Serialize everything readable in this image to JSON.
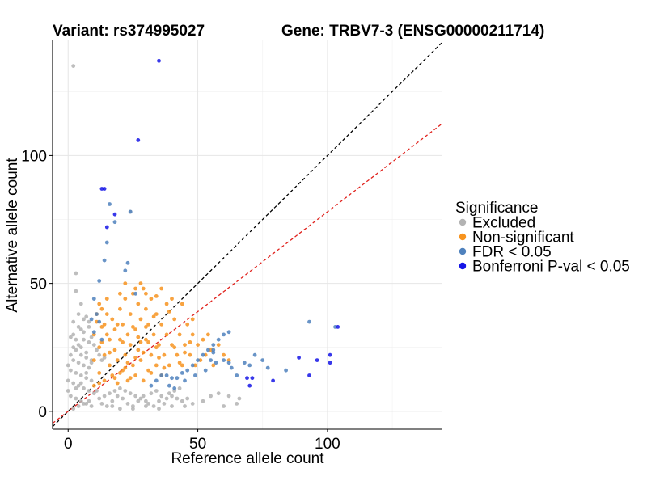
{
  "chart_data": {
    "type": "scatter",
    "title_variant": "Variant: rs374995027",
    "title_gene": "Gene: TRBV7-3 (ENSG00000211714)",
    "xlabel": "Reference allele count",
    "ylabel": "Alternative allele count",
    "xlim": [
      -6,
      144
    ],
    "ylim": [
      -7,
      145
    ],
    "xticks": [
      0,
      50,
      100
    ],
    "yticks": [
      0,
      50,
      100
    ],
    "minor_xticks": [
      25,
      75,
      125
    ],
    "minor_yticks": [
      25,
      75,
      125
    ],
    "reference_lines": [
      {
        "name": "identity",
        "slope": 1,
        "intercept": 0,
        "color": "#000000",
        "style": "dashed"
      },
      {
        "name": "expected-ratio",
        "slope": 0.78,
        "intercept": 0,
        "color": "#e0211c",
        "style": "dashed"
      }
    ],
    "legend": {
      "title": "Significance",
      "position": "right",
      "entries": [
        {
          "label": "Excluded",
          "color": "#b3b3b3"
        },
        {
          "label": "Non-significant",
          "color": "#f7931e"
        },
        {
          "label": "FDR < 0.05",
          "color": "#4f81bd"
        },
        {
          "label": "Bonferroni P-val < 0.05",
          "color": "#1515e6"
        }
      ]
    },
    "series": [
      {
        "name": "Excluded",
        "color": "#b3b3b3",
        "points": [
          [
            2,
            135
          ],
          [
            3,
            54
          ],
          [
            3,
            47
          ],
          [
            5,
            42
          ],
          [
            4,
            38
          ],
          [
            2,
            30
          ],
          [
            6,
            28
          ],
          [
            8,
            27
          ],
          [
            3,
            24
          ],
          [
            5,
            22
          ],
          [
            7,
            21
          ],
          [
            2,
            20
          ],
          [
            4,
            19
          ],
          [
            6,
            18
          ],
          [
            8,
            17
          ],
          [
            1,
            16
          ],
          [
            3,
            15
          ],
          [
            5,
            14
          ],
          [
            7,
            13
          ],
          [
            9,
            12
          ],
          [
            2,
            11
          ],
          [
            4,
            10
          ],
          [
            6,
            9
          ],
          [
            8,
            8
          ],
          [
            10,
            7
          ],
          [
            1,
            6
          ],
          [
            3,
            5
          ],
          [
            5,
            4
          ],
          [
            7,
            3
          ],
          [
            9,
            2
          ],
          [
            2,
            1
          ],
          [
            4,
            2
          ],
          [
            6,
            3
          ],
          [
            8,
            4
          ],
          [
            12,
            5
          ],
          [
            14,
            6
          ],
          [
            16,
            7
          ],
          [
            18,
            8
          ],
          [
            20,
            9
          ],
          [
            22,
            8
          ],
          [
            24,
            7
          ],
          [
            26,
            6
          ],
          [
            28,
            5
          ],
          [
            30,
            4
          ],
          [
            32,
            7
          ],
          [
            34,
            8
          ],
          [
            36,
            6
          ],
          [
            38,
            5
          ],
          [
            40,
            6
          ],
          [
            42,
            5
          ],
          [
            44,
            4
          ],
          [
            46,
            5
          ],
          [
            55,
            6
          ],
          [
            58,
            7
          ],
          [
            62,
            6
          ],
          [
            66,
            5
          ],
          [
            3,
            9
          ],
          [
            5,
            11
          ],
          [
            7,
            15
          ],
          [
            9,
            19
          ],
          [
            11,
            8
          ],
          [
            13,
            3
          ],
          [
            15,
            2
          ],
          [
            17,
            4
          ],
          [
            19,
            6
          ],
          [
            21,
            5
          ],
          [
            23,
            3
          ],
          [
            25,
            2
          ],
          [
            27,
            4
          ],
          [
            29,
            6
          ],
          [
            31,
            3
          ],
          [
            33,
            2
          ],
          [
            35,
            4
          ],
          [
            37,
            3
          ],
          [
            39,
            7
          ],
          [
            41,
            8
          ],
          [
            43,
            9
          ],
          [
            5,
            25
          ],
          [
            7,
            23
          ],
          [
            4,
            26
          ],
          [
            6,
            31
          ],
          [
            8,
            33
          ],
          [
            2,
            35
          ],
          [
            4,
            33
          ],
          [
            1,
            29
          ],
          [
            0,
            8
          ],
          [
            0,
            12
          ],
          [
            0,
            18
          ],
          [
            1,
            22
          ],
          [
            2,
            25
          ],
          [
            3,
            28
          ],
          [
            5,
            32
          ],
          [
            6,
            36
          ],
          [
            7,
            37
          ],
          [
            8,
            35
          ],
          [
            9,
            29
          ],
          [
            10,
            26
          ],
          [
            11,
            24
          ],
          [
            12,
            22
          ],
          [
            13,
            20
          ],
          [
            14,
            21
          ],
          [
            17,
            2
          ],
          [
            20,
            1
          ],
          [
            25,
            1
          ],
          [
            30,
            2
          ],
          [
            35,
            1
          ],
          [
            40,
            2
          ],
          [
            45,
            2
          ],
          [
            48,
            3
          ],
          [
            52,
            4
          ],
          [
            60,
            2
          ],
          [
            65,
            3
          ],
          [
            24,
            78
          ],
          [
            9,
            20
          ]
        ]
      },
      {
        "name": "Non-significant",
        "color": "#f7931e",
        "points": [
          [
            10,
            10
          ],
          [
            10,
            20
          ],
          [
            10,
            30
          ],
          [
            11,
            35
          ],
          [
            12,
            15
          ],
          [
            12,
            25
          ],
          [
            13,
            33
          ],
          [
            14,
            12
          ],
          [
            14,
            22
          ],
          [
            15,
            30
          ],
          [
            15,
            38
          ],
          [
            16,
            18
          ],
          [
            16,
            28
          ],
          [
            17,
            14
          ],
          [
            17,
            36
          ],
          [
            18,
            24
          ],
          [
            18,
            32
          ],
          [
            19,
            11
          ],
          [
            19,
            20
          ],
          [
            20,
            28
          ],
          [
            20,
            40
          ],
          [
            21,
            16
          ],
          [
            21,
            34
          ],
          [
            22,
            22
          ],
          [
            22,
            44
          ],
          [
            23,
            12
          ],
          [
            23,
            30
          ],
          [
            24,
            26
          ],
          [
            24,
            38
          ],
          [
            25,
            18
          ],
          [
            25,
            46
          ],
          [
            26,
            14
          ],
          [
            26,
            32
          ],
          [
            27,
            24
          ],
          [
            27,
            42
          ],
          [
            28,
            20
          ],
          [
            28,
            36
          ],
          [
            29,
            12
          ],
          [
            29,
            48
          ],
          [
            30,
            28
          ],
          [
            30,
            40
          ],
          [
            31,
            16
          ],
          [
            31,
            34
          ],
          [
            32,
            22
          ],
          [
            32,
            44
          ],
          [
            33,
            30
          ],
          [
            34,
            18
          ],
          [
            34,
            38
          ],
          [
            35,
            26
          ],
          [
            36,
            14
          ],
          [
            36,
            34
          ],
          [
            37,
            22
          ],
          [
            38,
            30
          ],
          [
            39,
            18
          ],
          [
            40,
            26
          ],
          [
            41,
            36
          ],
          [
            42,
            22
          ],
          [
            43,
            30
          ],
          [
            44,
            18
          ],
          [
            45,
            26
          ],
          [
            46,
            34
          ],
          [
            47,
            22
          ],
          [
            48,
            30
          ],
          [
            49,
            18
          ],
          [
            50,
            26
          ],
          [
            51,
            20
          ],
          [
            52,
            28
          ],
          [
            53,
            22
          ],
          [
            54,
            30
          ],
          [
            55,
            24
          ],
          [
            56,
            18
          ],
          [
            58,
            26
          ],
          [
            60,
            22
          ],
          [
            62,
            20
          ],
          [
            48,
            36
          ],
          [
            44,
            42
          ],
          [
            40,
            44
          ],
          [
            36,
            48
          ],
          [
            28,
            50
          ],
          [
            26,
            48
          ],
          [
            30,
            46
          ],
          [
            34,
            45
          ],
          [
            38,
            42
          ],
          [
            15,
            44
          ],
          [
            13,
            40
          ],
          [
            11,
            38
          ],
          [
            12,
            42
          ],
          [
            20,
            46
          ],
          [
            22,
            50
          ],
          [
            19,
            34
          ],
          [
            21,
            27
          ],
          [
            23,
            19
          ],
          [
            25,
            33
          ],
          [
            27,
            29
          ],
          [
            29,
            23
          ],
          [
            31,
            27
          ],
          [
            33,
            37
          ],
          [
            35,
            21
          ],
          [
            37,
            17
          ],
          [
            39,
            39
          ],
          [
            41,
            25
          ],
          [
            43,
            19
          ],
          [
            45,
            23
          ],
          [
            47,
            27
          ],
          [
            12,
            11
          ],
          [
            13,
            27
          ],
          [
            14,
            34
          ],
          [
            16,
            23
          ],
          [
            18,
            13
          ],
          [
            20,
            15
          ],
          [
            22,
            17
          ],
          [
            24,
            13
          ],
          [
            26,
            21
          ],
          [
            28,
            27
          ],
          [
            30,
            33
          ],
          [
            32,
            15
          ],
          [
            34,
            25
          ]
        ]
      },
      {
        "name": "FDR < 0.05",
        "color": "#4f81bd",
        "points": [
          [
            16,
            81
          ],
          [
            18,
            74
          ],
          [
            15,
            66
          ],
          [
            14,
            59
          ],
          [
            24,
            78
          ],
          [
            23,
            58
          ],
          [
            22,
            55
          ],
          [
            12,
            51
          ],
          [
            10,
            44
          ],
          [
            11,
            38
          ],
          [
            12,
            35
          ],
          [
            9,
            36
          ],
          [
            13,
            28
          ],
          [
            10,
            31
          ],
          [
            26,
            46
          ],
          [
            34,
            12
          ],
          [
            36,
            14
          ],
          [
            38,
            14
          ],
          [
            40,
            13
          ],
          [
            42,
            13
          ],
          [
            44,
            15
          ],
          [
            46,
            16
          ],
          [
            48,
            18
          ],
          [
            50,
            20
          ],
          [
            52,
            22
          ],
          [
            54,
            24
          ],
          [
            56,
            26
          ],
          [
            58,
            28
          ],
          [
            60,
            30
          ],
          [
            62,
            31
          ],
          [
            56,
            24
          ],
          [
            56,
            23
          ],
          [
            55,
            20
          ],
          [
            60,
            20
          ],
          [
            62,
            19
          ],
          [
            63,
            17
          ],
          [
            65,
            14
          ],
          [
            68,
            19
          ],
          [
            70,
            18
          ],
          [
            72,
            22
          ],
          [
            75,
            20
          ],
          [
            77,
            17
          ],
          [
            93,
            35
          ],
          [
            103,
            33
          ],
          [
            84,
            16
          ],
          [
            41,
            9
          ],
          [
            39,
            10
          ],
          [
            45,
            12
          ],
          [
            49,
            14
          ],
          [
            53,
            16
          ],
          [
            57,
            19
          ],
          [
            32,
            10
          ]
        ]
      },
      {
        "name": "Bonferroni P-val < 0.05",
        "color": "#1515e6",
        "points": [
          [
            35,
            137
          ],
          [
            27,
            106
          ],
          [
            13,
            87
          ],
          [
            14,
            87
          ],
          [
            18,
            77
          ],
          [
            15,
            72
          ],
          [
            104,
            33
          ],
          [
            89,
            21
          ],
          [
            96,
            20
          ],
          [
            101,
            22
          ],
          [
            101,
            19
          ],
          [
            93,
            14
          ],
          [
            79,
            12
          ],
          [
            71,
            13
          ],
          [
            70,
            10
          ],
          [
            69,
            13
          ]
        ]
      }
    ]
  }
}
